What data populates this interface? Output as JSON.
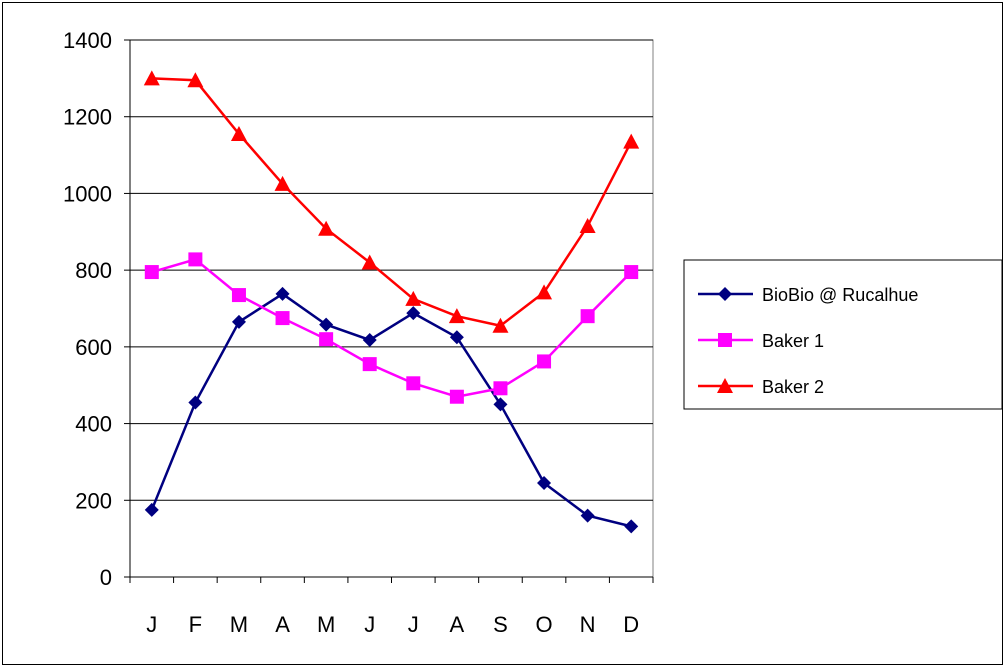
{
  "chart_data": {
    "type": "line",
    "title": "",
    "xlabel": "",
    "ylabel": "",
    "categories": [
      "J",
      "F",
      "M",
      "A",
      "M",
      "J",
      "J",
      "A",
      "S",
      "O",
      "N",
      "D"
    ],
    "ylim": [
      0,
      1400
    ],
    "yticks": [
      0,
      200,
      400,
      600,
      800,
      1000,
      1200,
      1400
    ],
    "grid": true,
    "legend_position": "right",
    "series": [
      {
        "name": "BioBio @ Rucalhue",
        "color": "#000080",
        "marker": "diamond",
        "values": [
          175,
          455,
          665,
          738,
          658,
          618,
          688,
          625,
          450,
          245,
          160,
          132
        ]
      },
      {
        "name": "Baker 1",
        "color": "#FF00FF",
        "marker": "square",
        "values": [
          795,
          828,
          735,
          675,
          620,
          555,
          505,
          470,
          492,
          562,
          680,
          795
        ]
      },
      {
        "name": "Baker 2",
        "color": "#FF0000",
        "marker": "triangle",
        "values": [
          1300,
          1295,
          1155,
          1025,
          908,
          820,
          725,
          680,
          655,
          742,
          915,
          1135
        ]
      }
    ]
  }
}
